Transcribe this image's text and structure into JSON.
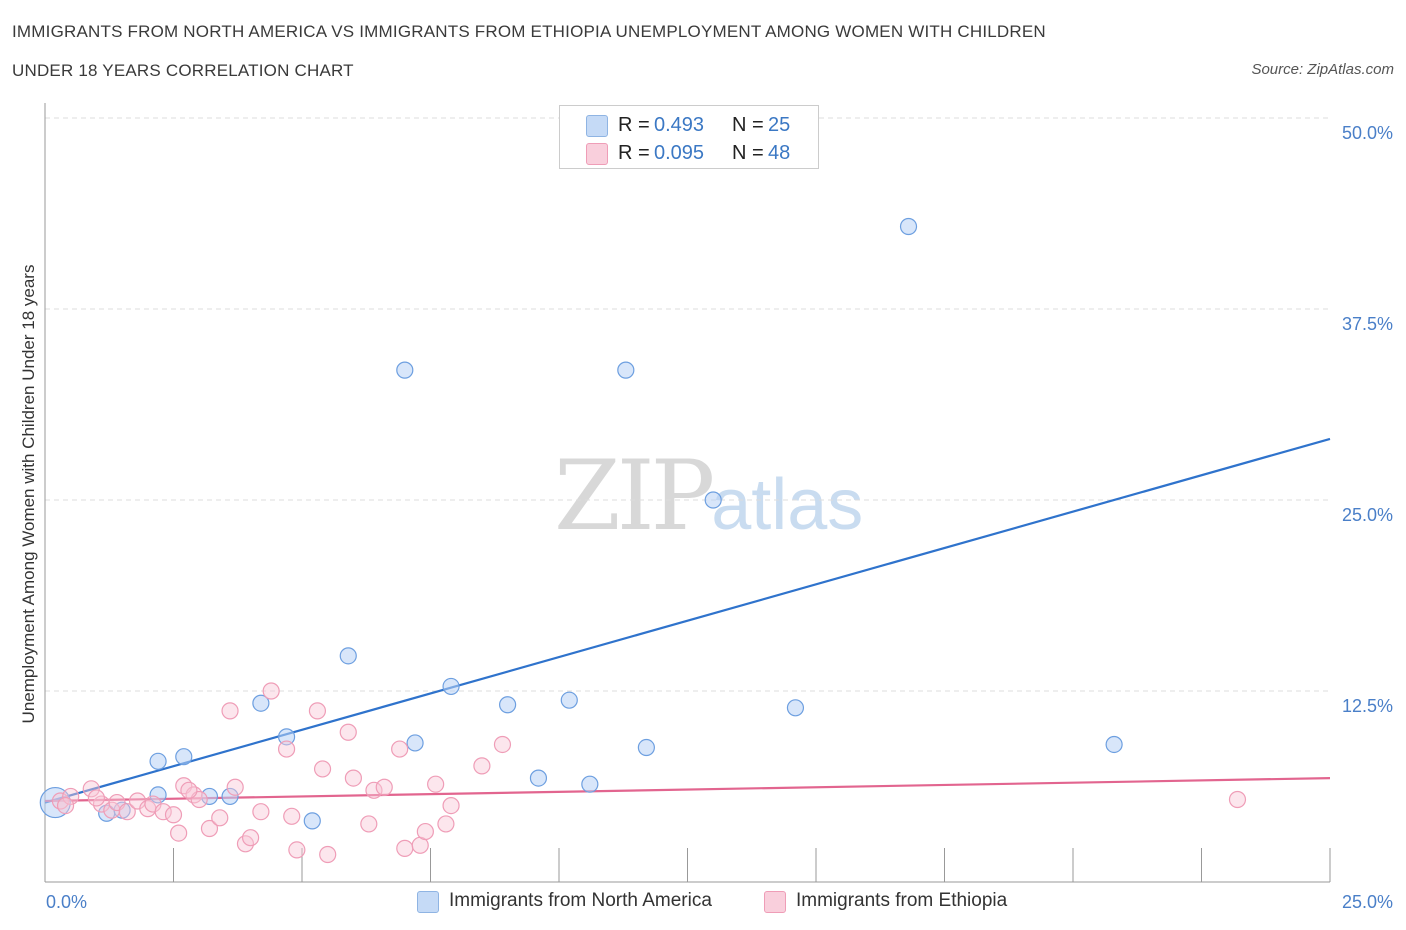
{
  "title_line1": "IMMIGRANTS FROM NORTH AMERICA VS IMMIGRANTS FROM ETHIOPIA UNEMPLOYMENT AMONG WOMEN WITH CHILDREN",
  "title_line2": "UNDER 18 YEARS CORRELATION CHART",
  "source": "Source: ZipAtlas.com",
  "watermark": {
    "zip": "ZIP",
    "atlas": "atlas"
  },
  "legend": {
    "r_label": "R =",
    "n_label": "N =",
    "north_america": {
      "r": "0.493",
      "n": "25",
      "color": "#6d9fe0"
    },
    "ethiopia": {
      "r": "0.095",
      "n": "48",
      "color": "#ef8fae"
    }
  },
  "chart_data": {
    "type": "scatter",
    "title": "IMMIGRANTS FROM NORTH AMERICA VS IMMIGRANTS FROM ETHIOPIA UNEMPLOYMENT AMONG WOMEN WITH CHILDREN UNDER 18 YEARS CORRELATION CHART",
    "xlabel": "",
    "ylabel": "Unemployment Among Women with Children Under 18 years",
    "xlim": [
      0,
      25
    ],
    "ylim": [
      0,
      50
    ],
    "x_tick_labels": [
      "0.0%",
      "25.0%"
    ],
    "y_tick_labels": [
      "12.5%",
      "25.0%",
      "37.5%",
      "50.0%"
    ],
    "y_ticks": [
      12.5,
      25.0,
      37.5,
      50.0
    ],
    "grid": "horizontal dashed",
    "legend_position": "top-center and bottom",
    "series": [
      {
        "name": "Immigrants from North America",
        "color": "#6d9fe0",
        "trend": {
          "x": [
            0,
            25
          ],
          "y": [
            5.2,
            29.0
          ]
        },
        "points": [
          {
            "x": 0.2,
            "y": 5.2,
            "big": true
          },
          {
            "x": 1.2,
            "y": 4.5
          },
          {
            "x": 2.2,
            "y": 5.7
          },
          {
            "x": 2.2,
            "y": 7.9
          },
          {
            "x": 2.7,
            "y": 8.2
          },
          {
            "x": 3.2,
            "y": 5.6
          },
          {
            "x": 3.6,
            "y": 5.6
          },
          {
            "x": 4.2,
            "y": 11.7
          },
          {
            "x": 4.7,
            "y": 9.5
          },
          {
            "x": 5.2,
            "y": 4.0
          },
          {
            "x": 5.9,
            "y": 14.8
          },
          {
            "x": 7.0,
            "y": 33.5
          },
          {
            "x": 7.2,
            "y": 9.1
          },
          {
            "x": 7.9,
            "y": 12.8
          },
          {
            "x": 9.0,
            "y": 11.6
          },
          {
            "x": 9.6,
            "y": 6.8
          },
          {
            "x": 10.2,
            "y": 11.9
          },
          {
            "x": 10.6,
            "y": 6.4
          },
          {
            "x": 11.3,
            "y": 33.5
          },
          {
            "x": 11.7,
            "y": 8.8
          },
          {
            "x": 13.0,
            "y": 25.0
          },
          {
            "x": 14.6,
            "y": 11.4
          },
          {
            "x": 16.8,
            "y": 42.9
          },
          {
            "x": 20.8,
            "y": 9.0
          },
          {
            "x": 1.5,
            "y": 4.7
          }
        ]
      },
      {
        "name": "Immigrants from Ethiopia",
        "color": "#ef8fae",
        "trend": {
          "x": [
            0,
            25
          ],
          "y": [
            5.3,
            6.8
          ]
        },
        "points": [
          {
            "x": 0.3,
            "y": 5.3
          },
          {
            "x": 0.5,
            "y": 5.6
          },
          {
            "x": 0.9,
            "y": 6.1
          },
          {
            "x": 1.1,
            "y": 5.1
          },
          {
            "x": 1.3,
            "y": 4.7
          },
          {
            "x": 1.4,
            "y": 5.2
          },
          {
            "x": 1.6,
            "y": 4.6
          },
          {
            "x": 1.8,
            "y": 5.3
          },
          {
            "x": 2.0,
            "y": 4.8
          },
          {
            "x": 2.1,
            "y": 5.1
          },
          {
            "x": 2.3,
            "y": 4.6
          },
          {
            "x": 2.5,
            "y": 4.4
          },
          {
            "x": 2.6,
            "y": 3.2
          },
          {
            "x": 2.7,
            "y": 6.3
          },
          {
            "x": 2.9,
            "y": 5.7
          },
          {
            "x": 3.0,
            "y": 5.4
          },
          {
            "x": 3.2,
            "y": 3.5
          },
          {
            "x": 3.4,
            "y": 4.2
          },
          {
            "x": 3.6,
            "y": 11.2
          },
          {
            "x": 3.7,
            "y": 6.2
          },
          {
            "x": 3.9,
            "y": 2.5
          },
          {
            "x": 4.0,
            "y": 2.9
          },
          {
            "x": 4.2,
            "y": 4.6
          },
          {
            "x": 4.4,
            "y": 12.5
          },
          {
            "x": 4.7,
            "y": 8.7
          },
          {
            "x": 4.8,
            "y": 4.3
          },
          {
            "x": 4.9,
            "y": 2.1
          },
          {
            "x": 5.3,
            "y": 11.2
          },
          {
            "x": 5.4,
            "y": 7.4
          },
          {
            "x": 5.5,
            "y": 1.8
          },
          {
            "x": 5.9,
            "y": 9.8
          },
          {
            "x": 6.0,
            "y": 6.8
          },
          {
            "x": 6.3,
            "y": 3.8
          },
          {
            "x": 6.4,
            "y": 6.0
          },
          {
            "x": 6.6,
            "y": 6.2
          },
          {
            "x": 6.9,
            "y": 8.7
          },
          {
            "x": 7.0,
            "y": 2.2
          },
          {
            "x": 7.3,
            "y": 2.4
          },
          {
            "x": 7.4,
            "y": 3.3
          },
          {
            "x": 7.6,
            "y": 6.4
          },
          {
            "x": 7.8,
            "y": 3.8
          },
          {
            "x": 7.9,
            "y": 5.0
          },
          {
            "x": 8.5,
            "y": 7.6
          },
          {
            "x": 8.9,
            "y": 9.0
          },
          {
            "x": 1.0,
            "y": 5.5
          },
          {
            "x": 0.4,
            "y": 5.0
          },
          {
            "x": 23.2,
            "y": 5.4
          },
          {
            "x": 2.8,
            "y": 6.0
          }
        ]
      }
    ]
  }
}
